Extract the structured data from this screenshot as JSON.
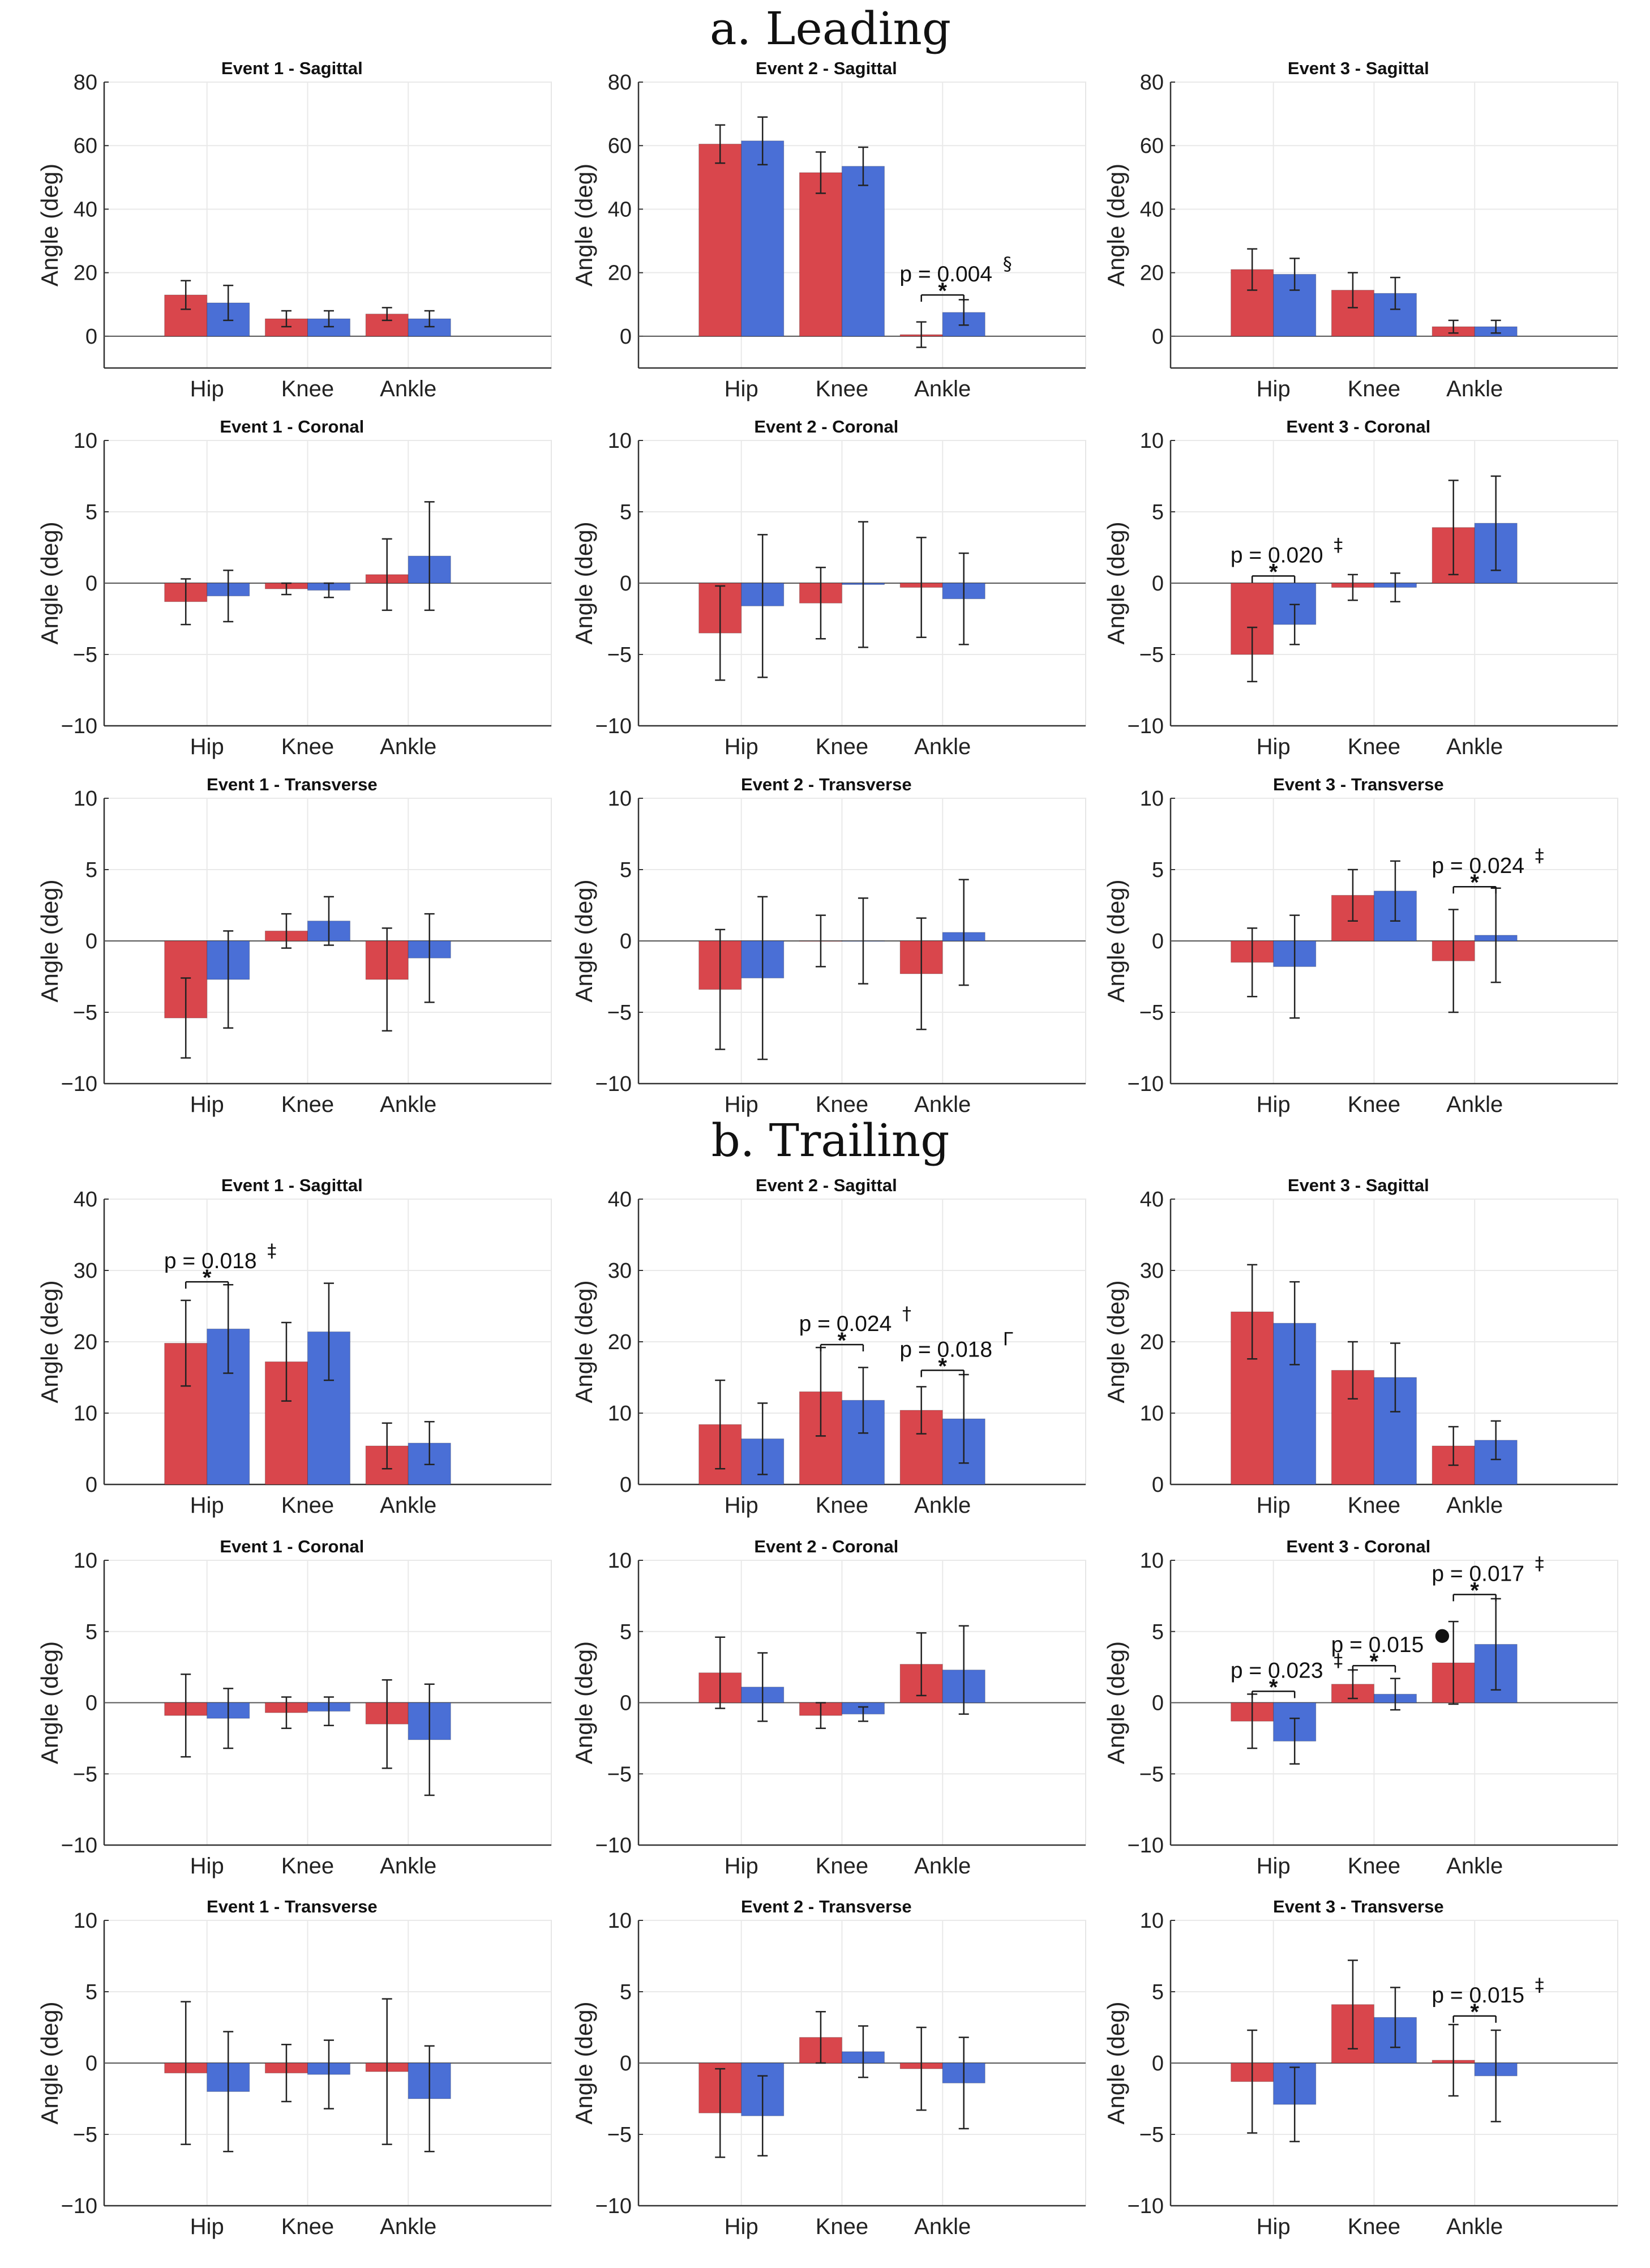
{
  "colors": {
    "series_a": "#d9464c",
    "series_b": "#4a6fd6"
  },
  "sections": [
    "a. Leading",
    "b. Trailing"
  ],
  "chart_data": [
    {
      "type": "bar",
      "section": "a. Leading",
      "title": "Event 1 - Sagittal",
      "ylabel": "Angle (deg)",
      "categories": [
        "Hip",
        "Knee",
        "Ankle"
      ],
      "ylim": [
        -10,
        80
      ],
      "yticks": [
        0,
        20,
        40,
        60,
        80
      ],
      "series": [
        {
          "values": [
            13,
            5.5,
            7
          ],
          "err": [
            4.5,
            2.5,
            2
          ]
        },
        {
          "values": [
            10.5,
            5.5,
            5.5
          ],
          "err": [
            5.5,
            2.5,
            2.5
          ]
        }
      ],
      "annotations": []
    },
    {
      "type": "bar",
      "section": "a. Leading",
      "title": "Event 2 - Sagittal",
      "ylabel": "Angle (deg)",
      "categories": [
        "Hip",
        "Knee",
        "Ankle"
      ],
      "ylim": [
        -10,
        80
      ],
      "yticks": [
        0,
        20,
        40,
        60,
        80
      ],
      "series": [
        {
          "values": [
            60.5,
            51.5,
            0.5
          ],
          "err": [
            6,
            6.5,
            4
          ]
        },
        {
          "values": [
            61.5,
            53.5,
            7.5
          ],
          "err": [
            7.5,
            6,
            4
          ]
        }
      ],
      "annotations": [
        {
          "cat": 2,
          "label": "p = 0.004",
          "mark": "§",
          "y": 13
        }
      ]
    },
    {
      "type": "bar",
      "section": "a. Leading",
      "title": "Event 3 - Sagittal",
      "ylabel": "Angle (deg)",
      "categories": [
        "Hip",
        "Knee",
        "Ankle"
      ],
      "ylim": [
        -10,
        80
      ],
      "yticks": [
        0,
        20,
        40,
        60,
        80
      ],
      "series": [
        {
          "values": [
            21,
            14.5,
            3
          ],
          "err": [
            6.5,
            5.5,
            2
          ]
        },
        {
          "values": [
            19.5,
            13.5,
            3
          ],
          "err": [
            5,
            5,
            2
          ]
        }
      ],
      "annotations": []
    },
    {
      "type": "bar",
      "section": "a. Leading",
      "title": "Event 1 - Coronal",
      "ylabel": "Angle (deg)",
      "categories": [
        "Hip",
        "Knee",
        "Ankle"
      ],
      "ylim": [
        -10,
        10
      ],
      "yticks": [
        -10,
        -5,
        0,
        5,
        10
      ],
      "series": [
        {
          "values": [
            -1.3,
            -0.4,
            0.6
          ],
          "err": [
            1.6,
            0.4,
            2.5
          ]
        },
        {
          "values": [
            -0.9,
            -0.5,
            1.9
          ],
          "err": [
            1.8,
            0.5,
            3.8
          ]
        }
      ],
      "annotations": []
    },
    {
      "type": "bar",
      "section": "a. Leading",
      "title": "Event 2 - Coronal",
      "ylabel": "Angle (deg)",
      "categories": [
        "Hip",
        "Knee",
        "Ankle"
      ],
      "ylim": [
        -10,
        10
      ],
      "yticks": [
        -10,
        -5,
        0,
        5,
        10
      ],
      "series": [
        {
          "values": [
            -3.5,
            -1.4,
            -0.3
          ],
          "err": [
            3.3,
            2.5,
            3.5
          ]
        },
        {
          "values": [
            -1.6,
            -0.1,
            -1.1
          ],
          "err": [
            5,
            4.4,
            3.2
          ]
        }
      ],
      "annotations": []
    },
    {
      "type": "bar",
      "section": "a. Leading",
      "title": "Event 3 - Coronal",
      "ylabel": "Angle (deg)",
      "categories": [
        "Hip",
        "Knee",
        "Ankle"
      ],
      "ylim": [
        -10,
        10
      ],
      "yticks": [
        -10,
        -5,
        0,
        5,
        10
      ],
      "series": [
        {
          "values": [
            -5,
            -0.3,
            3.9
          ],
          "err": [
            1.9,
            0.9,
            3.3
          ]
        },
        {
          "values": [
            -2.9,
            -0.3,
            4.2
          ],
          "err": [
            1.4,
            1,
            3.3
          ]
        }
      ],
      "annotations": [
        {
          "cat": 0,
          "label": "p = 0.020",
          "mark": "‡",
          "y": 0.5
        }
      ]
    },
    {
      "type": "bar",
      "section": "a. Leading",
      "title": "Event 1 - Transverse",
      "ylabel": "Angle (deg)",
      "categories": [
        "Hip",
        "Knee",
        "Ankle"
      ],
      "ylim": [
        -10,
        10
      ],
      "yticks": [
        -10,
        -5,
        0,
        5,
        10
      ],
      "series": [
        {
          "values": [
            -5.4,
            0.7,
            -2.7
          ],
          "err": [
            2.8,
            1.2,
            3.6
          ]
        },
        {
          "values": [
            -2.7,
            1.4,
            -1.2
          ],
          "err": [
            3.4,
            1.7,
            3.1
          ]
        }
      ],
      "annotations": []
    },
    {
      "type": "bar",
      "section": "a. Leading",
      "title": "Event 2 - Transverse",
      "ylabel": "Angle (deg)",
      "categories": [
        "Hip",
        "Knee",
        "Ankle"
      ],
      "ylim": [
        -10,
        10
      ],
      "yticks": [
        -10,
        -5,
        0,
        5,
        10
      ],
      "series": [
        {
          "values": [
            -3.4,
            0,
            -2.3
          ],
          "err": [
            4.2,
            1.8,
            3.9
          ]
        },
        {
          "values": [
            -2.6,
            0,
            0.6
          ],
          "err": [
            5.7,
            3,
            3.7
          ]
        }
      ],
      "annotations": []
    },
    {
      "type": "bar",
      "section": "a. Leading",
      "title": "Event 3 - Transverse",
      "ylabel": "Angle (deg)",
      "categories": [
        "Hip",
        "Knee",
        "Ankle"
      ],
      "ylim": [
        -10,
        10
      ],
      "yticks": [
        -10,
        -5,
        0,
        5,
        10
      ],
      "series": [
        {
          "values": [
            -1.5,
            3.2,
            -1.4
          ],
          "err": [
            2.4,
            1.8,
            3.6
          ]
        },
        {
          "values": [
            -1.8,
            3.5,
            0.4
          ],
          "err": [
            3.6,
            2.1,
            3.3
          ]
        }
      ],
      "annotations": [
        {
          "cat": 2,
          "label": "p = 0.024",
          "mark": "‡",
          "y": 3.8
        }
      ]
    },
    {
      "type": "bar",
      "section": "b. Trailing",
      "title": "Event 1 - Sagittal",
      "ylabel": "Angle (deg)",
      "categories": [
        "Hip",
        "Knee",
        "Ankle"
      ],
      "ylim": [
        0,
        40
      ],
      "yticks": [
        0,
        10,
        20,
        30,
        40
      ],
      "series": [
        {
          "values": [
            19.8,
            17.2,
            5.4
          ],
          "err": [
            6,
            5.5,
            3.2
          ]
        },
        {
          "values": [
            21.8,
            21.4,
            5.8
          ],
          "err": [
            6.2,
            6.8,
            3
          ]
        }
      ],
      "annotations": [
        {
          "cat": 0,
          "label": "p = 0.018",
          "mark": "‡",
          "y": 28.4
        }
      ]
    },
    {
      "type": "bar",
      "section": "b. Trailing",
      "title": "Event 2 - Sagittal",
      "ylabel": "Angle (deg)",
      "categories": [
        "Hip",
        "Knee",
        "Ankle"
      ],
      "ylim": [
        0,
        40
      ],
      "yticks": [
        0,
        10,
        20,
        30,
        40
      ],
      "series": [
        {
          "values": [
            8.4,
            13,
            10.4
          ],
          "err": [
            6.2,
            6.2,
            3.3
          ]
        },
        {
          "values": [
            6.4,
            11.8,
            9.2
          ],
          "err": [
            5,
            4.6,
            6.2
          ]
        }
      ],
      "annotations": [
        {
          "cat": 1,
          "label": "p = 0.024",
          "mark": "†",
          "y": 19.6
        },
        {
          "cat": 2,
          "label": "p = 0.018",
          "mark": "Γ",
          "y": 16
        }
      ]
    },
    {
      "type": "bar",
      "section": "b. Trailing",
      "title": "Event 3 - Sagittal",
      "ylabel": "Angle (deg)",
      "categories": [
        "Hip",
        "Knee",
        "Ankle"
      ],
      "ylim": [
        0,
        40
      ],
      "yticks": [
        0,
        10,
        20,
        30,
        40
      ],
      "series": [
        {
          "values": [
            24.2,
            16,
            5.4
          ],
          "err": [
            6.6,
            4,
            2.7
          ]
        },
        {
          "values": [
            22.6,
            15,
            6.2
          ],
          "err": [
            5.8,
            4.8,
            2.7
          ]
        }
      ],
      "annotations": []
    },
    {
      "type": "bar",
      "section": "b. Trailing",
      "title": "Event 1 - Coronal",
      "ylabel": "Angle (deg)",
      "categories": [
        "Hip",
        "Knee",
        "Ankle"
      ],
      "ylim": [
        -10,
        10
      ],
      "yticks": [
        -10,
        -5,
        0,
        5,
        10
      ],
      "series": [
        {
          "values": [
            -0.9,
            -0.7,
            -1.5
          ],
          "err": [
            2.9,
            1.1,
            3.1
          ]
        },
        {
          "values": [
            -1.1,
            -0.6,
            -2.6
          ],
          "err": [
            2.1,
            1,
            3.9
          ]
        }
      ],
      "annotations": []
    },
    {
      "type": "bar",
      "section": "b. Trailing",
      "title": "Event 2 - Coronal",
      "ylabel": "Angle (deg)",
      "categories": [
        "Hip",
        "Knee",
        "Ankle"
      ],
      "ylim": [
        -10,
        10
      ],
      "yticks": [
        -10,
        -5,
        0,
        5,
        10
      ],
      "series": [
        {
          "values": [
            2.1,
            -0.9,
            2.7
          ],
          "err": [
            2.5,
            0.9,
            2.2
          ]
        },
        {
          "values": [
            1.1,
            -0.8,
            2.3
          ],
          "err": [
            2.4,
            0.5,
            3.1
          ]
        }
      ],
      "annotations": []
    },
    {
      "type": "bar",
      "section": "b. Trailing",
      "title": "Event 3 - Coronal",
      "ylabel": "Angle (deg)",
      "categories": [
        "Hip",
        "Knee",
        "Ankle"
      ],
      "ylim": [
        -10,
        10
      ],
      "yticks": [
        -10,
        -5,
        0,
        5,
        10
      ],
      "series": [
        {
          "values": [
            -1.3,
            1.3,
            2.8
          ],
          "err": [
            1.9,
            1,
            2.9
          ]
        },
        {
          "values": [
            -2.7,
            0.6,
            4.1
          ],
          "err": [
            1.6,
            1.1,
            3.2
          ]
        }
      ],
      "annotations": [
        {
          "cat": 0,
          "label": "p = 0.023",
          "mark": "‡",
          "y": 0.8
        },
        {
          "cat": 1,
          "label": "p = 0.015",
          "mark": "●",
          "y": 2.6
        },
        {
          "cat": 2,
          "label": "p = 0.017",
          "mark": "‡",
          "y": 7.6
        }
      ]
    },
    {
      "type": "bar",
      "section": "b. Trailing",
      "title": "Event 1 - Transverse",
      "ylabel": "Angle (deg)",
      "categories": [
        "Hip",
        "Knee",
        "Ankle"
      ],
      "ylim": [
        -10,
        10
      ],
      "yticks": [
        -10,
        -5,
        0,
        5,
        10
      ],
      "series": [
        {
          "values": [
            -0.7,
            -0.7,
            -0.6
          ],
          "err": [
            5,
            2,
            5.1
          ]
        },
        {
          "values": [
            -2,
            -0.8,
            -2.5
          ],
          "err": [
            4.2,
            2.4,
            3.7
          ]
        }
      ],
      "annotations": []
    },
    {
      "type": "bar",
      "section": "b. Trailing",
      "title": "Event 2 - Transverse",
      "ylabel": "Angle (deg)",
      "categories": [
        "Hip",
        "Knee",
        "Ankle"
      ],
      "ylim": [
        -10,
        10
      ],
      "yticks": [
        -10,
        -5,
        0,
        5,
        10
      ],
      "series": [
        {
          "values": [
            -3.5,
            1.8,
            -0.4
          ],
          "err": [
            3.1,
            1.8,
            2.9
          ]
        },
        {
          "values": [
            -3.7,
            0.8,
            -1.4
          ],
          "err": [
            2.8,
            1.8,
            3.2
          ]
        }
      ],
      "annotations": []
    },
    {
      "type": "bar",
      "section": "b. Trailing",
      "title": "Event 3 - Transverse",
      "ylabel": "Angle (deg)",
      "categories": [
        "Hip",
        "Knee",
        "Ankle"
      ],
      "ylim": [
        -10,
        10
      ],
      "yticks": [
        -10,
        -5,
        0,
        5,
        10
      ],
      "series": [
        {
          "values": [
            -1.3,
            4.1,
            0.2
          ],
          "err": [
            3.6,
            3.1,
            2.5
          ]
        },
        {
          "values": [
            -2.9,
            3.2,
            -0.9
          ],
          "err": [
            2.6,
            2.1,
            3.2
          ]
        }
      ],
      "annotations": [
        {
          "cat": 2,
          "label": "p = 0.015",
          "mark": "‡",
          "y": 3.3
        }
      ]
    }
  ]
}
